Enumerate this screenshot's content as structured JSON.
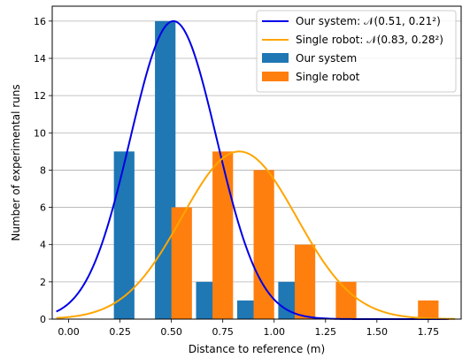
{
  "chart_data": {
    "type": "bar",
    "xlabel": "Distance to reference (m)",
    "ylabel": "Number of experimental runs",
    "xlim": [
      -0.08,
      1.91
    ],
    "ylim": [
      0,
      16.8
    ],
    "x_ticks": [
      "0.00",
      "0.25",
      "0.50",
      "0.75",
      "1.00",
      "1.25",
      "1.50",
      "1.75"
    ],
    "y_ticks": [
      "0",
      "2",
      "4",
      "6",
      "8",
      "10",
      "12",
      "14",
      "16"
    ],
    "grid": "horizontal",
    "legend_position": "top-right",
    "bin_width": 0.2,
    "bars": [
      {
        "series": "Our system",
        "x": 0.27,
        "value": 9
      },
      {
        "series": "Our system",
        "x": 0.47,
        "value": 16
      },
      {
        "series": "Our system",
        "x": 0.67,
        "value": 2
      },
      {
        "series": "Our system",
        "x": 0.87,
        "value": 1
      },
      {
        "series": "Our system",
        "x": 1.07,
        "value": 2
      },
      {
        "series": "Single robot",
        "x": 0.55,
        "value": 6
      },
      {
        "series": "Single robot",
        "x": 0.75,
        "value": 9
      },
      {
        "series": "Single robot",
        "x": 0.95,
        "value": 8
      },
      {
        "series": "Single robot",
        "x": 1.15,
        "value": 4
      },
      {
        "series": "Single robot",
        "x": 1.35,
        "value": 2
      },
      {
        "series": "Single robot",
        "x": 1.75,
        "value": 1
      }
    ],
    "series": [
      {
        "name": "Our system",
        "kind": "bar",
        "color": "#1f77b4"
      },
      {
        "name": "Single robot",
        "kind": "bar",
        "color": "#ff7f0e"
      }
    ],
    "curves": [
      {
        "name": "Our system: 𝒩(0.51, 0.21²)",
        "color": "#0000e6",
        "mean": 0.51,
        "sd": 0.21,
        "peak": 16.0,
        "x_range": [
          -0.06,
          1.85
        ]
      },
      {
        "name": "Single robot: 𝒩(0.83, 0.28²)",
        "color": "#ffa500",
        "mean": 0.83,
        "sd": 0.28,
        "peak": 9.0,
        "x_range": [
          -0.06,
          1.88
        ]
      }
    ],
    "legend": [
      {
        "label": "Our system: 𝒩(0.51, 0.21²)",
        "kind": "line",
        "color": "#0000e6"
      },
      {
        "label": "Single robot: 𝒩(0.83, 0.28²)",
        "kind": "line",
        "color": "#ffa500"
      },
      {
        "label": "Our system",
        "kind": "patch",
        "color": "#1f77b4"
      },
      {
        "label": "Single robot",
        "kind": "patch",
        "color": "#ff7f0e"
      }
    ]
  }
}
